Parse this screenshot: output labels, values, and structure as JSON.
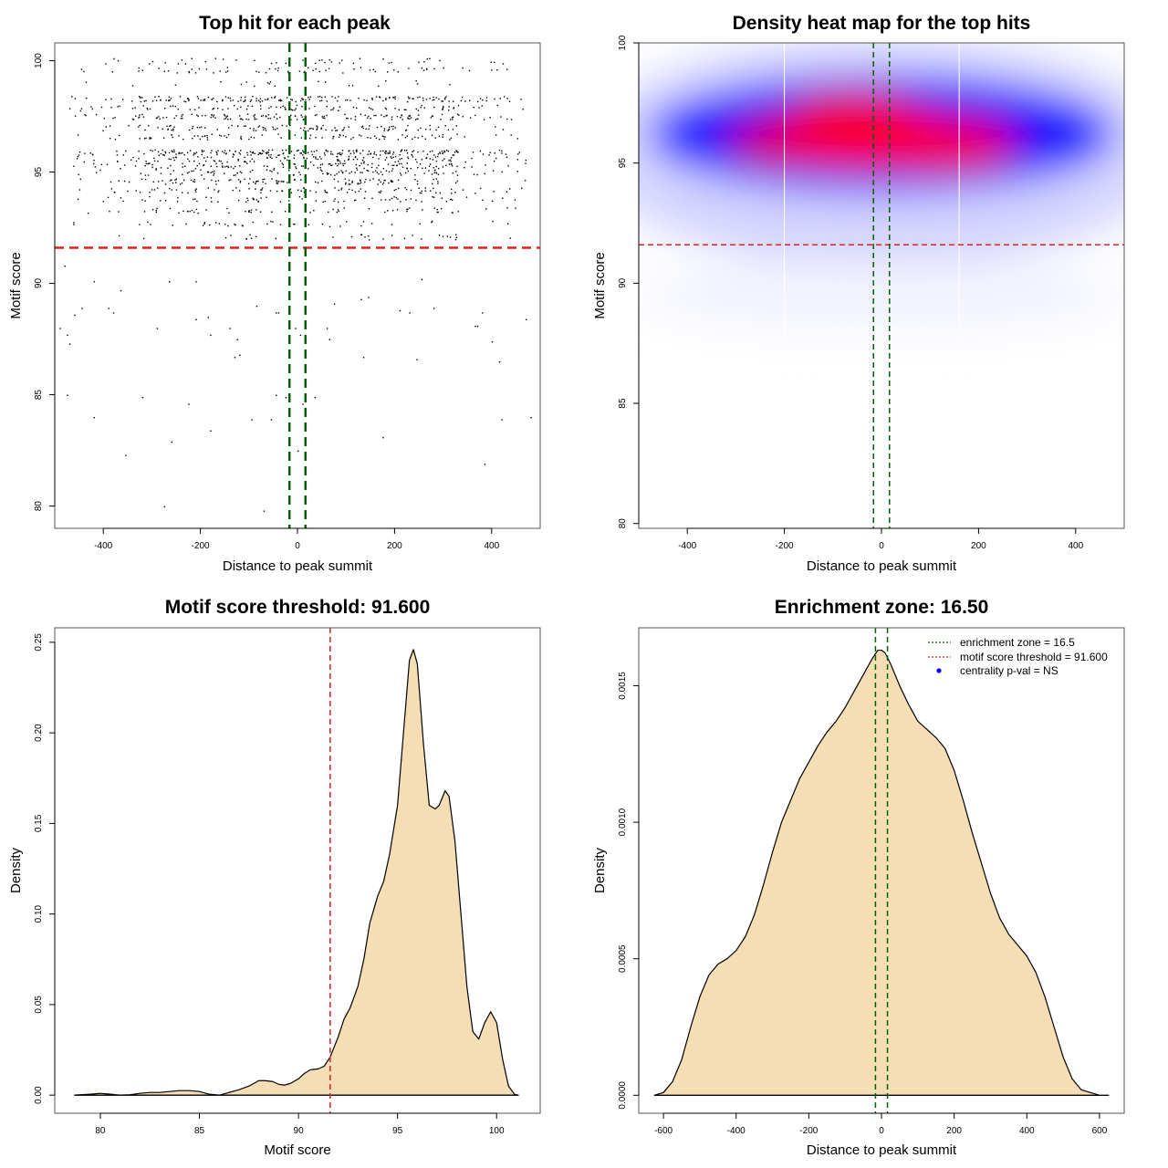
{
  "colors": {
    "threshold_line": "#dd2222",
    "zone_line": "#006400",
    "density_fill": "#f5deb3",
    "density_stroke": "#000000",
    "heat_low": "#ffffff",
    "heat_mid": "#0000ff",
    "heat_high": "#ff0000",
    "legend_dot": "#0000ff"
  },
  "chart_data": [
    {
      "id": "scatter",
      "type": "scatter",
      "title": "Top hit for each peak",
      "xlabel": "Distance to peak summit",
      "ylabel": "Motif score",
      "xlim": [
        -500,
        500
      ],
      "ylim": [
        79,
        100.8
      ],
      "xticks": [
        -400,
        -200,
        0,
        200,
        400
      ],
      "yticks": [
        80,
        85,
        90,
        95,
        100
      ],
      "hlines": [
        91.6
      ],
      "vlines": [
        -16.5,
        16.5
      ],
      "points_summary": "~2000 points spread uniformly over x in [-500,500]; dense band between scores 92 and 100 with horizontal stripes at ~95.9, 97.5, 98.3, 99.6, 100; sparse points below 91.6",
      "sparse_points": [
        [
          -480,
          90.8
        ],
        [
          -420,
          90.1
        ],
        [
          -470,
          87.3
        ],
        [
          -475,
          87.7
        ],
        [
          -490,
          88.0
        ],
        [
          -460,
          88.6
        ],
        [
          -445,
          88.9
        ],
        [
          -390,
          88.9
        ],
        [
          -380,
          88.7
        ],
        [
          -365,
          89.7
        ],
        [
          -290,
          88.0
        ],
        [
          -265,
          90.1
        ],
        [
          -210,
          90.1
        ],
        [
          -210,
          88.4
        ],
        [
          -185,
          88.5
        ],
        [
          -180,
          87.7
        ],
        [
          -140,
          88.0
        ],
        [
          -125,
          87.5
        ],
        [
          -120,
          86.8
        ],
        [
          -130,
          86.7
        ],
        [
          -85,
          89.0
        ],
        [
          -45,
          88.7
        ],
        [
          -40,
          88.7
        ],
        [
          -5,
          88.0
        ],
        [
          5,
          87.7
        ],
        [
          15,
          88.1
        ],
        [
          60,
          88.0
        ],
        [
          65,
          87.5
        ],
        [
          75,
          89.1
        ],
        [
          130,
          89.3
        ],
        [
          145,
          89.4
        ],
        [
          135,
          86.7
        ],
        [
          210,
          88.8
        ],
        [
          230,
          88.7
        ],
        [
          245,
          86.6
        ],
        [
          255,
          90.2
        ],
        [
          280,
          88.9
        ],
        [
          365,
          88.1
        ],
        [
          370,
          88.1
        ],
        [
          380,
          88.7
        ],
        [
          400,
          87.4
        ],
        [
          415,
          86.5
        ],
        [
          470,
          88.4
        ],
        [
          -475,
          85.0
        ],
        [
          -420,
          84.0
        ],
        [
          -320,
          84.9
        ],
        [
          -225,
          84.6
        ],
        [
          -180,
          83.4
        ],
        [
          -95,
          83.9
        ],
        [
          -55,
          83.9
        ],
        [
          -45,
          85.0
        ],
        [
          -25,
          84.9
        ],
        [
          10,
          84.6
        ],
        [
          35,
          84.9
        ],
        [
          -260,
          82.9
        ],
        [
          -355,
          82.3
        ],
        [
          0,
          82.5
        ],
        [
          175,
          83.1
        ],
        [
          420,
          83.9
        ],
        [
          480,
          84.0
        ],
        [
          385,
          81.9
        ],
        [
          -275,
          80.0
        ],
        [
          -70,
          79.8
        ]
      ]
    },
    {
      "id": "heatmap",
      "type": "heatmap",
      "title": "Density heat map for the top hits",
      "xlabel": "Distance to peak summit",
      "ylabel": "Motif score",
      "xlim": [
        -500,
        500
      ],
      "ylim": [
        79.8,
        100
      ],
      "xticks": [
        -400,
        -200,
        0,
        200,
        400
      ],
      "yticks": [
        80,
        85,
        90,
        95,
        100
      ],
      "hlines": [
        91.6
      ],
      "vlines": [
        -16.5,
        16.5
      ],
      "white_gridlines_x": [
        -200,
        160
      ],
      "hotspots": [
        {
          "x": -30,
          "y": 95.9,
          "level": 1.0
        },
        {
          "x": 110,
          "y": 95.8,
          "level": 0.95
        },
        {
          "x": -170,
          "y": 95.9,
          "level": 0.8
        },
        {
          "x": -60,
          "y": 97.0,
          "level": 0.75
        },
        {
          "x": 0,
          "y": 96.3,
          "level": 0.9
        }
      ],
      "color_scale": [
        "white",
        "blue",
        "red"
      ]
    },
    {
      "id": "score-density",
      "type": "area",
      "title": "Motif score threshold: 91.600",
      "xlabel": "Motif score",
      "ylabel": "Density",
      "xlim": [
        77.7,
        102.2
      ],
      "ylim": [
        -0.01,
        0.258
      ],
      "xticks": [
        80,
        85,
        90,
        95,
        100
      ],
      "yticks": [
        0.0,
        0.05,
        0.1,
        0.15,
        0.2,
        0.25
      ],
      "ytick_labels": [
        "0.00",
        "0.05",
        "0.10",
        "0.15",
        "0.20",
        "0.25"
      ],
      "vlines": [
        91.6
      ],
      "x": [
        78.7,
        79.5,
        80.0,
        80.5,
        81.0,
        81.5,
        82.0,
        82.5,
        83.0,
        83.5,
        84.0,
        84.5,
        85.0,
        85.5,
        86.0,
        86.5,
        87.0,
        87.5,
        88.0,
        88.3,
        88.7,
        89.0,
        89.3,
        89.6,
        90.0,
        90.3,
        90.6,
        91.0,
        91.3,
        91.6,
        92.0,
        92.3,
        92.6,
        93.0,
        93.3,
        93.6,
        94.0,
        94.3,
        94.6,
        95.0,
        95.3,
        95.6,
        95.8,
        96.0,
        96.3,
        96.6,
        96.9,
        97.1,
        97.4,
        97.6,
        97.9,
        98.2,
        98.5,
        98.8,
        99.1,
        99.4,
        99.7,
        100.0,
        100.3,
        100.6,
        100.9,
        101.1
      ],
      "y": [
        0.0,
        0.0005,
        0.001,
        0.0005,
        0.0,
        0.0002,
        0.001,
        0.0015,
        0.0015,
        0.002,
        0.0025,
        0.0025,
        0.002,
        0.0005,
        0.0,
        0.0015,
        0.003,
        0.005,
        0.008,
        0.008,
        0.0075,
        0.006,
        0.0055,
        0.0065,
        0.009,
        0.012,
        0.014,
        0.0145,
        0.016,
        0.021,
        0.032,
        0.042,
        0.048,
        0.06,
        0.075,
        0.095,
        0.11,
        0.118,
        0.133,
        0.16,
        0.2,
        0.24,
        0.246,
        0.238,
        0.195,
        0.16,
        0.158,
        0.16,
        0.168,
        0.165,
        0.14,
        0.1,
        0.06,
        0.035,
        0.031,
        0.04,
        0.046,
        0.04,
        0.02,
        0.005,
        0.0005,
        0.0
      ]
    },
    {
      "id": "distance-density",
      "type": "area",
      "title": "Enrichment zone: 16.50",
      "xlabel": "Distance to peak summit",
      "ylabel": "Density",
      "xlim": [
        -668,
        668
      ],
      "ylim": [
        -6.58e-05,
        0.001712
      ],
      "xticks": [
        -600,
        -400,
        -200,
        0,
        200,
        400,
        600
      ],
      "yticks": [
        0.0,
        0.0005,
        0.001,
        0.0015
      ],
      "ytick_labels": [
        "0.0000",
        "0.0005",
        "0.0010",
        "0.0015"
      ],
      "vlines": [
        -16.5,
        16.5
      ],
      "x": [
        -625,
        -600,
        -575,
        -550,
        -525,
        -500,
        -475,
        -450,
        -425,
        -400,
        -375,
        -350,
        -325,
        -300,
        -275,
        -250,
        -225,
        -200,
        -175,
        -150,
        -125,
        -100,
        -75,
        -50,
        -25,
        -10,
        0,
        10,
        25,
        50,
        75,
        100,
        125,
        150,
        175,
        200,
        225,
        250,
        275,
        300,
        325,
        350,
        375,
        400,
        425,
        450,
        475,
        500,
        525,
        550,
        575,
        600,
        625
      ],
      "y": [
        0.0,
        1e-05,
        5e-05,
        0.00013,
        0.00025,
        0.00036,
        0.00044,
        0.00048,
        0.0005,
        0.00053,
        0.00058,
        0.00066,
        0.00077,
        0.00089,
        0.001,
        0.00108,
        0.00116,
        0.00122,
        0.00128,
        0.00133,
        0.00137,
        0.00142,
        0.00148,
        0.00154,
        0.0016,
        0.00163,
        0.00163,
        0.00162,
        0.00158,
        0.0015,
        0.00143,
        0.00137,
        0.00134,
        0.00131,
        0.00127,
        0.00119,
        0.00108,
        0.00096,
        0.00085,
        0.00074,
        0.00065,
        0.00059,
        0.00055,
        0.00051,
        0.00045,
        0.00036,
        0.00025,
        0.00014,
        6e-05,
        2e-05,
        1e-05,
        0.0,
        0.0
      ],
      "legend": {
        "position": "top-right",
        "entries": [
          {
            "label": "enrichment zone = 16.5",
            "kind": "dotted-line",
            "color": "#006400"
          },
          {
            "label": "motif score threshold = 91.600",
            "kind": "dotted-line",
            "color": "#dd2222"
          },
          {
            "label": "centrality p-val = NS",
            "kind": "dot",
            "color": "#0000ff"
          }
        ]
      }
    }
  ]
}
